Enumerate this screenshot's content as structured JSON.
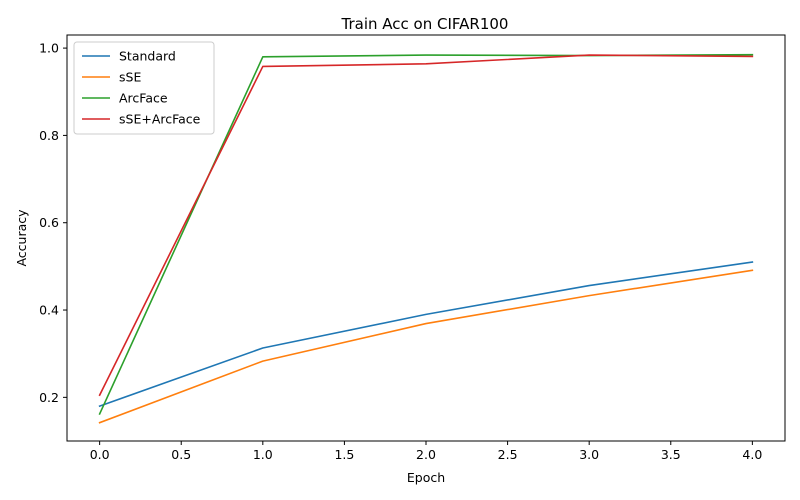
{
  "chart_data": {
    "type": "line",
    "title": "Train Acc on CIFAR100",
    "xlabel": "Epoch",
    "ylabel": "Accuracy",
    "x": [
      0,
      1,
      2,
      3,
      4
    ],
    "xlim": [
      -0.2,
      4.2
    ],
    "ylim": [
      0.1,
      1.03
    ],
    "xticks": [
      0.0,
      0.5,
      1.0,
      1.5,
      2.0,
      2.5,
      3.0,
      3.5,
      4.0
    ],
    "xtick_labels": [
      "0.0",
      "0.5",
      "1.0",
      "1.5",
      "2.0",
      "2.5",
      "3.0",
      "3.5",
      "4.0"
    ],
    "yticks": [
      0.2,
      0.4,
      0.6,
      0.8,
      1.0
    ],
    "ytick_labels": [
      "0.2",
      "0.4",
      "0.6",
      "0.8",
      "1.0"
    ],
    "grid": false,
    "legend_position": "top-left",
    "series": [
      {
        "name": "Standard",
        "color": "#1f77b4",
        "values": [
          0.18,
          0.313,
          0.39,
          0.456,
          0.51
        ]
      },
      {
        "name": "sSE",
        "color": "#ff7f0e",
        "values": [
          0.142,
          0.283,
          0.369,
          0.433,
          0.491
        ]
      },
      {
        "name": "ArcFace",
        "color": "#2ca02c",
        "values": [
          0.162,
          0.98,
          0.984,
          0.983,
          0.985
        ]
      },
      {
        "name": "sSE+ArcFace",
        "color": "#d62728",
        "values": [
          0.205,
          0.958,
          0.964,
          0.984,
          0.981
        ]
      }
    ]
  }
}
